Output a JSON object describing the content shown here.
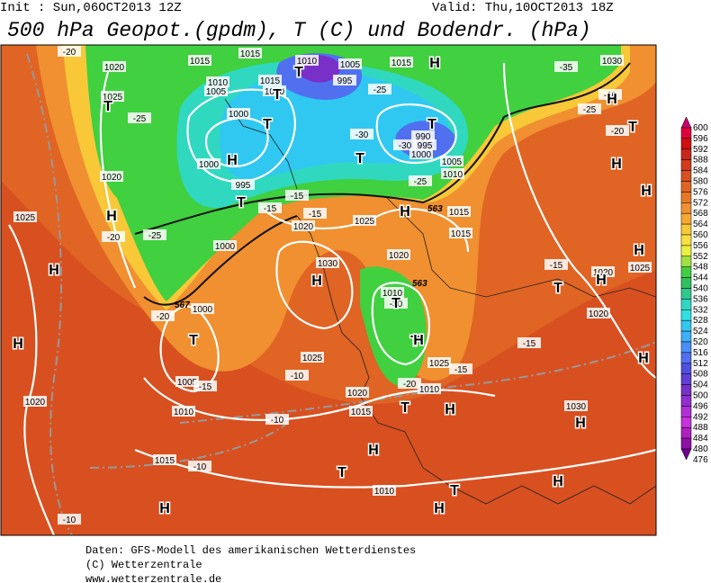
{
  "header": {
    "init": "Init : Sun,06OCT2013 12Z",
    "valid": "Valid: Thu,10OCT2013 18Z",
    "title": "500 hPa Geopot.(gpdm), T (C) und Bodendr. (hPa)"
  },
  "colorbar": {
    "labels": [
      "600",
      "596",
      "592",
      "588",
      "584",
      "580",
      "576",
      "572",
      "568",
      "564",
      "560",
      "556",
      "552",
      "548",
      "544",
      "540",
      "536",
      "532",
      "528",
      "524",
      "520",
      "516",
      "512",
      "508",
      "504",
      "500",
      "496",
      "492",
      "488",
      "484",
      "480",
      "476"
    ],
    "colors": [
      "#c8006e",
      "#e0003c",
      "#d01010",
      "#c82818",
      "#d03c1c",
      "#d85020",
      "#e06424",
      "#e87828",
      "#f09030",
      "#f8a830",
      "#f8c838",
      "#f8e040",
      "#e8f040",
      "#a0e040",
      "#40d040",
      "#30c060",
      "#30c890",
      "#30d8c0",
      "#30e0e0",
      "#30c8f0",
      "#3cb0f8",
      "#4890f8",
      "#5070f0",
      "#5050e0",
      "#6040d0",
      "#7830c8",
      "#9030d0",
      "#b030d8",
      "#c830e0",
      "#b020c0",
      "#9010a8",
      "#700090"
    ]
  },
  "map_labels": [
    "1020",
    "1015",
    "1015",
    "1010",
    "1005",
    "1015",
    "-20",
    "1025",
    "-25",
    "1010",
    "1005",
    "1015",
    "1020",
    "995",
    "1000",
    "-25",
    "-30",
    "990",
    "995",
    "1000",
    "-30",
    "1005",
    "1010",
    "-25",
    "1000",
    "995",
    "1020",
    "-35",
    "1030",
    "-30",
    "-25",
    "-20",
    "1025",
    "-25",
    "-20",
    "1000",
    "1025",
    "1020",
    "1015",
    "1015",
    "1020",
    "1030",
    "-15",
    "1020",
    "1025",
    "1020",
    "-20",
    "1000",
    "1010",
    "-30",
    "-15",
    "-10",
    "1025",
    "1005",
    "-15",
    "-10",
    "1020",
    "1015",
    "1020",
    "1010",
    "1015",
    "-10",
    "1010",
    "-10",
    "1025",
    "-15",
    "-20",
    "1010",
    "1030",
    "-15",
    "-15",
    "-15"
  ],
  "geopot_labels": [
    "563",
    "567",
    "563"
  ],
  "centers": [
    "H",
    "T",
    "T",
    "T",
    "T",
    "H",
    "T",
    "T",
    "H",
    "T",
    "H",
    "H",
    "H",
    "T",
    "H",
    "H",
    "H",
    "T",
    "H",
    "H",
    "H",
    "T",
    "T",
    "H",
    "T",
    "H",
    "H",
    "T",
    "T",
    "H",
    "H",
    "H",
    "H",
    "T",
    "H"
  ],
  "footer": [
    "Daten: GFS-Modell des amerikanischen Wetterdienstes",
    "(C) Wetterzentrale",
    "www.wetterzentrale.de"
  ]
}
